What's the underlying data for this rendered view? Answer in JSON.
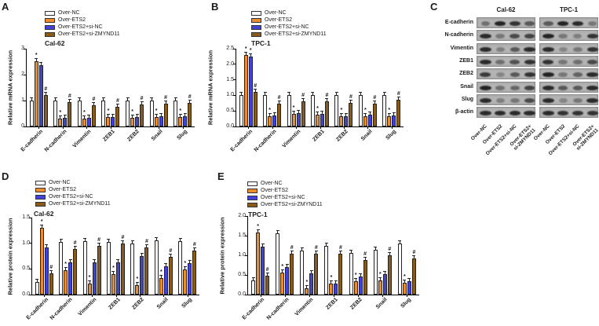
{
  "figure_bg": "#ffffff",
  "colors": {
    "over_nc": "#ffffff",
    "over_ets2": "#ee8c2b",
    "over_ets2_si_nc": "#4141dc",
    "over_ets2_si_zmynd11": "#8a5a19",
    "bar_border": "#222222",
    "axis": "#000000"
  },
  "chart_data": [
    {
      "type": "bar",
      "panel_label": "A",
      "title": "Cal-62",
      "ylabel": "Relative mRNA expression",
      "ylim": [
        0,
        3
      ],
      "yticks": [
        "0",
        "1",
        "2",
        "3"
      ],
      "legend_position": "top-left",
      "grid": false,
      "categories": [
        "E-cadherin",
        "N-cadherin",
        "Vimentin",
        "ZEB1",
        "ZEB2",
        "Snail",
        "Slug"
      ],
      "series": [
        {
          "name": "Over-NC",
          "color": "#ffffff",
          "values": [
            1.0,
            1.0,
            1.0,
            1.0,
            1.0,
            1.0,
            1.0
          ],
          "sig": [
            "",
            "",
            "",
            "",
            "",
            "",
            ""
          ]
        },
        {
          "name": "Over-ETS2",
          "color": "#ee8c2b",
          "values": [
            2.5,
            0.3,
            0.3,
            0.35,
            0.33,
            0.35,
            0.36
          ],
          "sig": [
            "*",
            "*",
            "*",
            "*",
            "*",
            "*",
            "*"
          ]
        },
        {
          "name": "Over-ETS2+si-NC",
          "color": "#4141dc",
          "values": [
            2.35,
            0.33,
            0.33,
            0.37,
            0.35,
            0.4,
            0.38
          ],
          "sig": [
            "",
            "",
            "",
            "",
            "",
            "",
            ""
          ]
        },
        {
          "name": "Over-ETS2+si-ZMYND11",
          "color": "#8a5a19",
          "values": [
            1.2,
            0.93,
            0.82,
            0.75,
            0.85,
            0.88,
            0.9
          ],
          "sig": [
            "#",
            "#",
            "#",
            "#",
            "#",
            "#",
            "#"
          ]
        }
      ]
    },
    {
      "type": "bar",
      "panel_label": "B",
      "title": "TPC-1",
      "ylabel": "Relative mRNA expression",
      "ylim": [
        0,
        2.5
      ],
      "yticks": [
        "0.0",
        "0.5",
        "1.0",
        "1.5",
        "2.0",
        "2.5"
      ],
      "legend_position": "top-left",
      "grid": false,
      "categories": [
        "E-cadherin",
        "N-cadherin",
        "Vimentin",
        "ZEB1",
        "ZEB2",
        "Snail",
        "Slug"
      ],
      "series": [
        {
          "name": "Over-NC",
          "color": "#ffffff",
          "values": [
            1.0,
            1.0,
            1.0,
            1.0,
            1.0,
            1.0,
            1.0
          ],
          "sig": [
            "",
            "",
            "",
            "",
            "",
            "",
            ""
          ]
        },
        {
          "name": "Over-ETS2",
          "color": "#ee8c2b",
          "values": [
            2.3,
            0.34,
            0.4,
            0.37,
            0.32,
            0.34,
            0.33
          ],
          "sig": [
            "*",
            "*",
            "*",
            "*",
            "*",
            "*",
            "*"
          ]
        },
        {
          "name": "Over-ETS2+si-NC",
          "color": "#4141dc",
          "values": [
            2.25,
            0.36,
            0.42,
            0.41,
            0.34,
            0.38,
            0.35
          ],
          "sig": [
            "*",
            "",
            "",
            "",
            "",
            "",
            ""
          ]
        },
        {
          "name": "Over-ETS2+si-ZMYND11",
          "color": "#8a5a19",
          "values": [
            1.1,
            0.73,
            0.8,
            0.8,
            0.75,
            0.73,
            0.85
          ],
          "sig": [
            "#",
            "#",
            "#",
            "#",
            "#",
            "#",
            "#"
          ]
        }
      ]
    },
    {
      "type": "bar",
      "panel_label": "D",
      "title": "Cal-62",
      "ylabel": "Relative protein expression",
      "ylim": [
        0,
        1.5
      ],
      "yticks": [
        "0.0",
        "0.5",
        "1.0",
        "1.5"
      ],
      "legend_position": "top-left",
      "grid": false,
      "categories": [
        "E-cadherin",
        "N-cadherin",
        "Vimentin",
        "ZEB1",
        "ZEB2",
        "Snail",
        "Slug"
      ],
      "series": [
        {
          "name": "Over-NC",
          "color": "#ffffff",
          "values": [
            0.25,
            1.03,
            1.04,
            1.03,
            0.99,
            1.05,
            1.04
          ],
          "sig": [
            "",
            "",
            "",
            "",
            "",
            "",
            ""
          ]
        },
        {
          "name": "Over-ETS2",
          "color": "#ee8c2b",
          "values": [
            1.3,
            0.48,
            0.22,
            0.4,
            0.19,
            0.32,
            0.49
          ],
          "sig": [
            "*",
            "*",
            "*",
            "*",
            "*",
            "*",
            "*"
          ]
        },
        {
          "name": "Over-ETS2+si-NC",
          "color": "#4141dc",
          "values": [
            0.92,
            0.62,
            0.62,
            0.62,
            0.75,
            0.55,
            0.61
          ],
          "sig": [
            "",
            "",
            "",
            "",
            "",
            "",
            ""
          ]
        },
        {
          "name": "Over-ETS2+si-ZMYND11",
          "color": "#8a5a19",
          "values": [
            0.42,
            0.89,
            0.95,
            0.99,
            0.92,
            0.73,
            0.85
          ],
          "sig": [
            "#",
            "#",
            "#",
            "#",
            "#",
            "#",
            "#"
          ]
        }
      ]
    },
    {
      "type": "bar",
      "panel_label": "E",
      "title": "TPC-1",
      "ylabel": "Relative protein expression",
      "ylim": [
        0,
        2.0
      ],
      "yticks": [
        "0.0",
        "0.5",
        "1.0",
        "1.5",
        "2.0"
      ],
      "legend_position": "top-left",
      "grid": false,
      "categories": [
        "E-cadherin",
        "N-cadherin",
        "Vimentin",
        "ZEB1",
        "ZEB2",
        "Snail",
        "Slug"
      ],
      "series": [
        {
          "name": "Over-NC",
          "color": "#ffffff",
          "values": [
            0.35,
            1.56,
            1.13,
            1.24,
            1.06,
            1.15,
            1.29
          ],
          "sig": [
            "",
            "",
            "",
            "",
            "",
            "",
            ""
          ]
        },
        {
          "name": "Over-ETS2",
          "color": "#ee8c2b",
          "values": [
            1.58,
            0.57,
            0.15,
            0.27,
            0.33,
            0.35,
            0.3
          ],
          "sig": [
            "*",
            "*",
            "*",
            "*",
            "*",
            "*",
            "*"
          ]
        },
        {
          "name": "Over-ETS2+si-NC",
          "color": "#4141dc",
          "values": [
            1.21,
            0.7,
            0.53,
            0.28,
            0.46,
            0.51,
            0.33
          ],
          "sig": [
            "",
            "",
            "",
            "",
            "",
            "",
            ""
          ]
        },
        {
          "name": "Over-ETS2+si-ZMYND11",
          "color": "#8a5a19",
          "values": [
            0.48,
            1.04,
            1.03,
            1.04,
            0.88,
            1.0,
            0.92
          ],
          "sig": [
            "#",
            "#",
            "#",
            "#",
            "#",
            "#",
            "#"
          ]
        }
      ]
    }
  ],
  "western_blot": {
    "panel_label": "C",
    "groups": [
      "Cal-62",
      "TPC-1"
    ],
    "proteins": [
      "E-cadherin",
      "N-cadherin",
      "Vimentin",
      "ZEB1",
      "ZEB2",
      "Snail",
      "Slug",
      "β-actin"
    ],
    "lanes": [
      "Over-NC",
      "Over-ETS2",
      "Over-ETS2+si-NC",
      "Over-ETS2+si-ZMYND11"
    ],
    "band_intensities": {
      "Cal-62": [
        [
          0.45,
          0.95,
          0.85,
          0.6
        ],
        [
          0.9,
          0.4,
          0.7,
          0.75
        ],
        [
          0.9,
          0.35,
          0.6,
          0.9
        ],
        [
          0.9,
          0.45,
          0.65,
          0.85
        ],
        [
          0.8,
          0.3,
          0.6,
          0.85
        ],
        [
          0.95,
          0.45,
          0.5,
          0.75
        ],
        [
          0.9,
          0.35,
          0.4,
          0.7
        ],
        [
          0.9,
          0.9,
          0.9,
          0.9
        ]
      ],
      "TPC-1": [
        [
          0.6,
          0.95,
          0.9,
          0.4
        ],
        [
          0.95,
          0.4,
          0.35,
          0.85
        ],
        [
          0.9,
          0.3,
          0.4,
          0.85
        ],
        [
          0.85,
          0.4,
          0.45,
          0.7
        ],
        [
          0.95,
          0.4,
          0.55,
          0.9
        ],
        [
          0.9,
          0.6,
          0.6,
          0.9
        ],
        [
          0.9,
          0.3,
          0.4,
          0.9
        ],
        [
          0.9,
          0.85,
          0.85,
          0.85
        ]
      ]
    }
  }
}
